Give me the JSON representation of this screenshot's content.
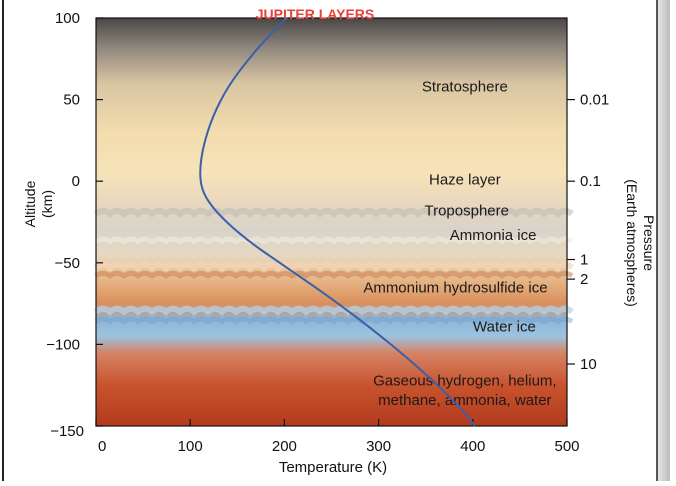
{
  "chart_data": {
    "type": "line",
    "title": "JUPITER LAYERS",
    "xlabel": "Temperature (K)",
    "ylabel": "Altitude (km)",
    "y2label": "Pressure (Earth atmospheres)",
    "xlim": [
      0,
      500
    ],
    "ylim": [
      -150,
      100
    ],
    "xticks": [
      0,
      100,
      200,
      300,
      400,
      500
    ],
    "yticks": [
      100,
      50,
      0,
      -50,
      -100,
      -150
    ],
    "pressure_ticks": [
      {
        "label": "0.01",
        "altitude": 50
      },
      {
        "label": "0.1",
        "altitude": 0
      },
      {
        "label": "1",
        "altitude": -48
      },
      {
        "label": "2",
        "altitude": -60
      },
      {
        "label": "10",
        "altitude": -112
      }
    ],
    "layers": [
      {
        "label": "Stratosphere",
        "altitude": 58,
        "temperature": 330
      },
      {
        "label": "Haze layer",
        "altitude": 1,
        "temperature": 330
      },
      {
        "label": "Troposphere",
        "altitude": -18,
        "temperature": 332
      },
      {
        "label": "Ammonia ice",
        "altitude": -33,
        "temperature": 360
      },
      {
        "label": "Ammonium hydrosulfide ice",
        "altitude": -65,
        "temperature": 320
      },
      {
        "label": "Water ice",
        "altitude": -89,
        "temperature": 372
      },
      {
        "label": "Gaseous hydrogen, helium,",
        "altitude": -122,
        "temperature": 330
      },
      {
        "label": "methane, ammonia, water",
        "altitude": -134,
        "temperature": 330
      }
    ],
    "series": [
      {
        "color": "#3b5fa8",
        "x": [
          203,
          185,
          162,
          140,
          124,
          114,
          110,
          112,
          122,
          140,
          165,
          195,
          228,
          262,
          296,
          330,
          363,
          392,
          402
        ],
        "y": [
          100,
          90,
          75,
          58,
          40,
          22,
          7,
          -5,
          -15,
          -26,
          -38,
          -50,
          -63,
          -77,
          -92,
          -108,
          -125,
          -142,
          -150
        ]
      }
    ],
    "grid": false,
    "legend": "none"
  }
}
